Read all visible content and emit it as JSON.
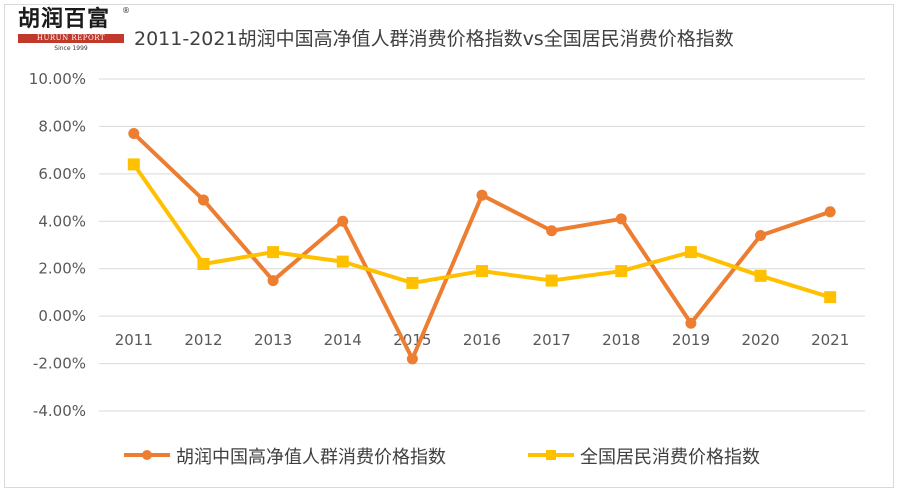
{
  "logo": {
    "cn": "胡润百富",
    "en": "HURUN REPORT",
    "since": "Since 1999",
    "reg": "®"
  },
  "chart_data": {
    "type": "line",
    "title": "2011-2021胡润中国高净值人群消费价格指数vs全国居民消费价格指数",
    "categories": [
      "2011",
      "2012",
      "2013",
      "2014",
      "2015",
      "2016",
      "2017",
      "2018",
      "2019",
      "2020",
      "2021"
    ],
    "ylim": [
      -4,
      10
    ],
    "yticks": [
      10,
      8,
      6,
      4,
      2,
      0,
      -2,
      -4
    ],
    "ytick_labels": [
      "10.00%",
      "8.00%",
      "6.00%",
      "4.00%",
      "2.00%",
      "0.00%",
      "-2.00%",
      "-4.00%"
    ],
    "grid": true,
    "legend_position": "bottom",
    "series": [
      {
        "name": "胡润中国高净值人群消费价格指数",
        "color": "#ED7D31",
        "marker": "circle",
        "values": [
          7.7,
          4.9,
          1.5,
          4.0,
          -1.8,
          5.1,
          3.6,
          4.1,
          -0.3,
          3.4,
          4.4
        ]
      },
      {
        "name": "全国居民消费价格指数",
        "color": "#FFC000",
        "marker": "square",
        "values": [
          6.4,
          2.2,
          2.7,
          2.3,
          1.4,
          1.9,
          1.5,
          1.9,
          2.7,
          1.7,
          0.8
        ]
      }
    ]
  }
}
